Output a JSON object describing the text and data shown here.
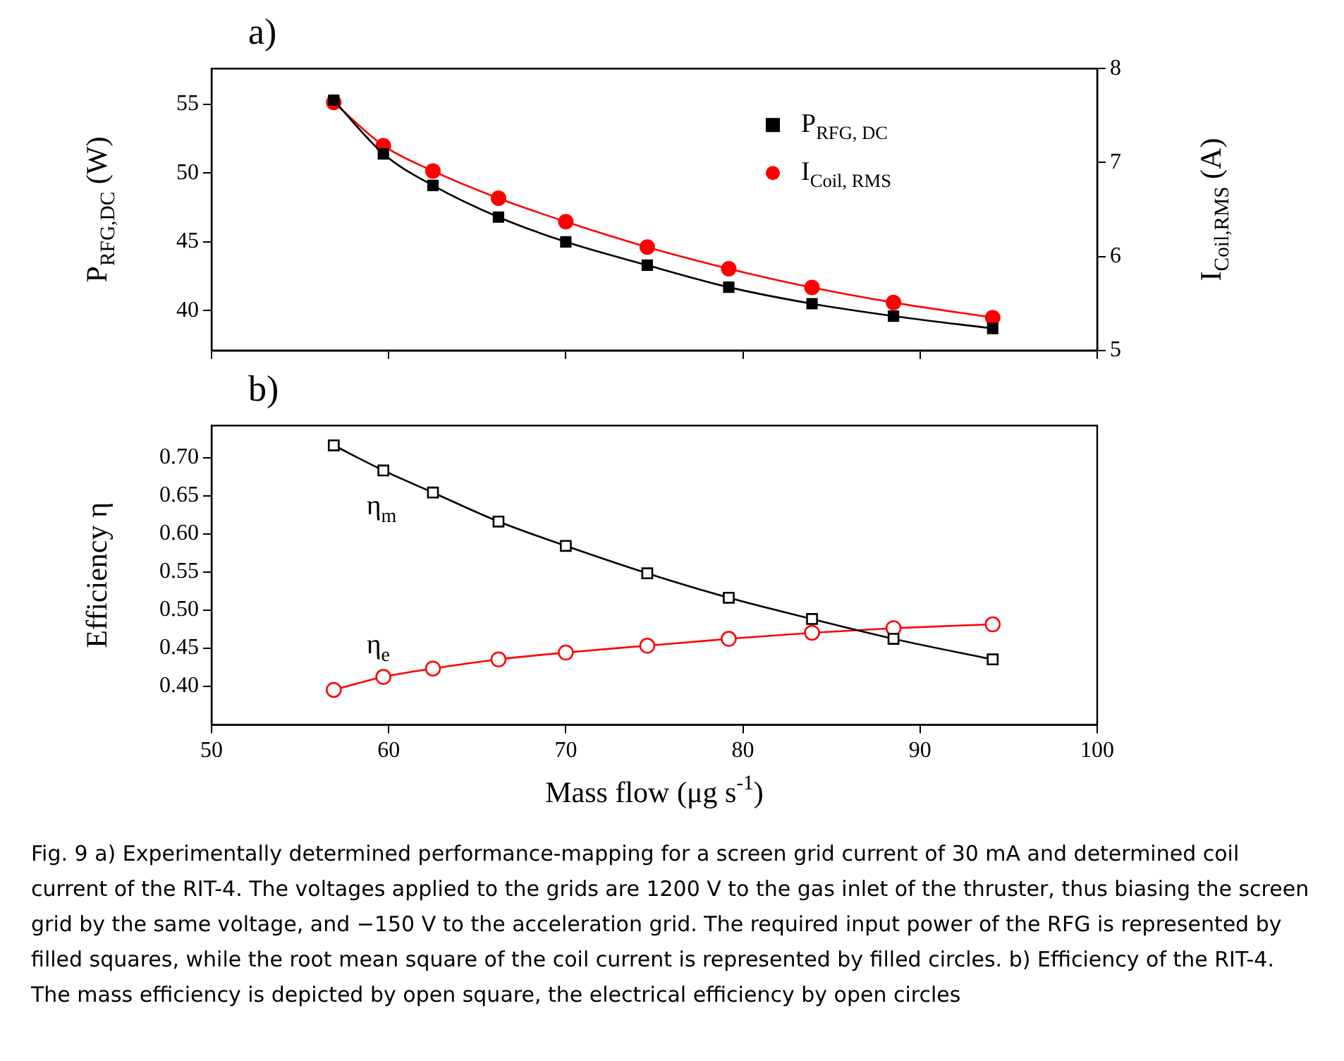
{
  "chart_data": [
    {
      "type": "line",
      "title": "a)",
      "ylabel": "P$_{RFG,DC}$ (W)",
      "y2label": "I$_{Coil,RMS}$ (A)",
      "x": [
        56.9,
        59.7,
        62.5,
        66.2,
        70.0,
        74.6,
        79.2,
        83.9,
        88.5,
        94.1
      ],
      "series": [
        {
          "name": "P$_{RFG, DC}$",
          "color": "#000000",
          "marker": "square",
          "values": [
            55.3,
            51.4,
            49.1,
            46.8,
            45.0,
            43.3,
            41.7,
            40.5,
            39.6,
            38.7
          ]
        },
        {
          "name": "I$_{Coil, RMS}$",
          "color": "#ff0000",
          "marker": "circle",
          "axis": "y2",
          "values": [
            7.64,
            7.18,
            6.91,
            6.62,
            6.37,
            6.1,
            5.87,
            5.67,
            5.51,
            5.35
          ]
        }
      ],
      "xlim": [
        50,
        100
      ],
      "xticks": [
        50,
        60,
        70,
        80,
        90,
        100
      ],
      "ylim": [
        37.1,
        57.6
      ],
      "yticks": [
        40,
        45,
        50,
        55
      ],
      "y2lim": [
        5,
        8
      ],
      "y2ticks": [
        5,
        6,
        7,
        8
      ],
      "tick_labels": "y",
      "legend": "top right",
      "grid": false
    },
    {
      "type": "line",
      "title": "b)",
      "xlabel": "Mass flow (μg s$^{-1}$)",
      "ylabel": "Efficiency η",
      "x": [
        56.9,
        59.7,
        62.5,
        66.2,
        70.0,
        74.6,
        79.2,
        83.9,
        88.5,
        94.1
      ],
      "series": [
        {
          "name": "η$_{m}$",
          "color": "#000000",
          "marker": "square",
          "values": [
            0.716,
            0.683,
            0.654,
            0.616,
            0.584,
            0.548,
            0.516,
            0.488,
            0.462,
            0.435
          ]
        },
        {
          "name": "η$_{e}$",
          "color": "#ff0000",
          "marker": "circle",
          "values": [
            0.395,
            0.412,
            0.423,
            0.435,
            0.444,
            0.453,
            0.462,
            0.47,
            0.476,
            0.481
          ]
        }
      ],
      "xlim": [
        50,
        100
      ],
      "xticks": [
        50,
        60,
        70,
        80,
        90,
        100
      ],
      "ylim": [
        0.349,
        0.742
      ],
      "yticks": [
        {
          "value": 0.4,
          "label": "0.40"
        },
        0.45,
        {
          "value": 0.5,
          "label": "0.50"
        },
        0.55,
        {
          "value": 0.6,
          "label": "0.60"
        },
        0.65,
        {
          "value": 0.7,
          "label": "0.70"
        }
      ],
      "legend": false,
      "grid": false,
      "annotations": [
        "Fig. 9 a) Experimentally determined performance-mapping for a screen grid current of 30 mA and determined coil current of the RIT-4. The voltages applied to the grids are 1200 V to the gas inlet of the thruster, thus biasing the screen grid by the same voltage, and −150 V to the acceleration grid. The required input power of the RFG is represented by filled squares, while the root mean square of the coil current is represented by filled circles. b) Efficiency of the RIT-4. The mass efficiency is depicted by open square, the electrical efficiency by open circles"
      ]
    }
  ]
}
